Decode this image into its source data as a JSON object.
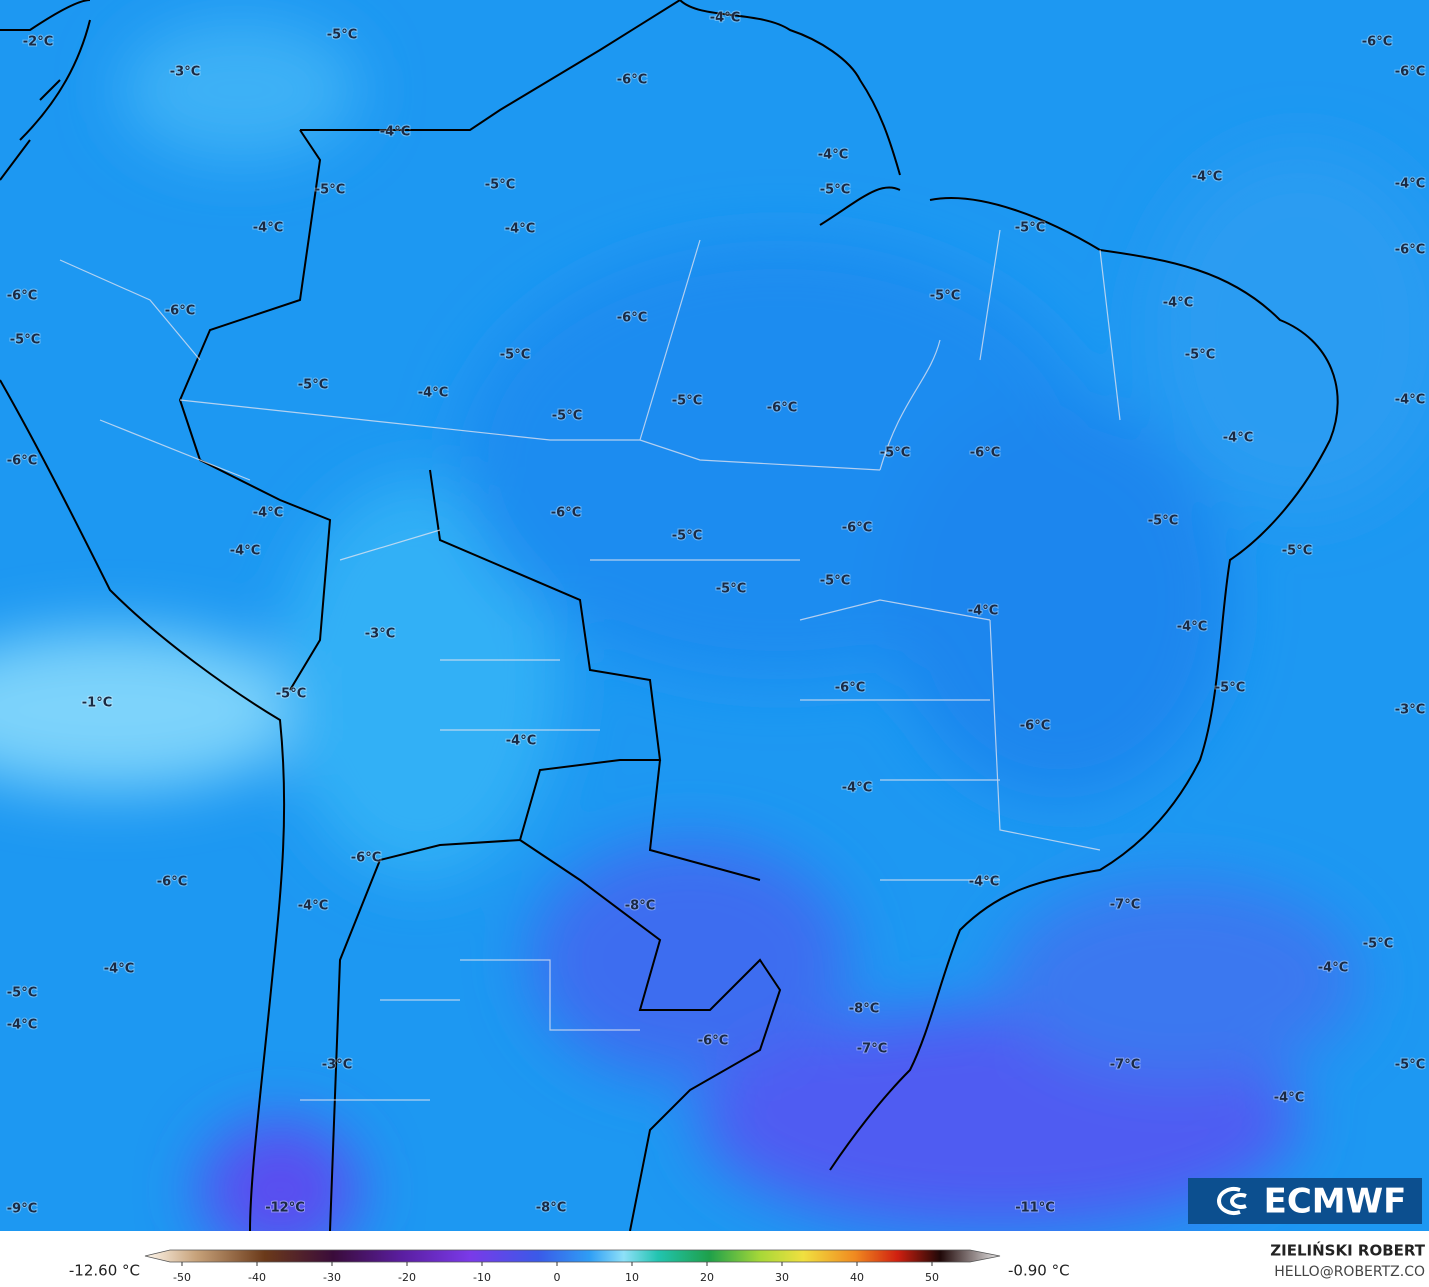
{
  "contour_labels": [
    "-2°C",
    "-5°C",
    "-4°C",
    "-6°C",
    "-6°C",
    "-3°C",
    "-6°C",
    "-4°C",
    "-4°C",
    "-5°C",
    "-5°C",
    "-5°C",
    "-4°C",
    "-4°C",
    "-4°C",
    "-4°C",
    "-5°C",
    "-6°C",
    "-6°C",
    "-5°C",
    "-4°C",
    "-6°C",
    "-6°C",
    "-5°C",
    "-5°C",
    "-5°C",
    "-5°C",
    "-4°C",
    "-5°C",
    "-6°C",
    "-4°C",
    "-5°C",
    "-4°C",
    "-5°C",
    "-6°C",
    "-6°C",
    "-4°C",
    "-6°C",
    "-5°C",
    "-6°C",
    "-5°C",
    "-4°C",
    "-5°C",
    "-5°C",
    "-5°C",
    "-4°C",
    "-4°C",
    "-3°C",
    "-6°C",
    "-5°C",
    "-1°C",
    "-5°C",
    "-3°C",
    "-6°C",
    "-4°C",
    "-4°C",
    "-6°C",
    "-6°C",
    "-4°C",
    "-8°C",
    "-7°C",
    "-4°C",
    "-5°C",
    "-4°C",
    "-4°C",
    "-5°C",
    "-8°C",
    "-4°C",
    "-6°C",
    "-7°C",
    "-3°C",
    "-7°C",
    "-5°C",
    "-4°C",
    "-9°C",
    "-12°C",
    "-8°C",
    "-11°C"
  ],
  "colorbar": {
    "min_label": "-12.60 °C",
    "max_label": "-0.90 °C",
    "ticks": [
      -50,
      -40,
      -30,
      -20,
      -10,
      0,
      10,
      20,
      30,
      40,
      50
    ]
  },
  "logo": "ECMWF",
  "credit": {
    "name": "ZIELIŃSKI ROBERT",
    "email": "HELLO@ROBERTZ.CO"
  }
}
